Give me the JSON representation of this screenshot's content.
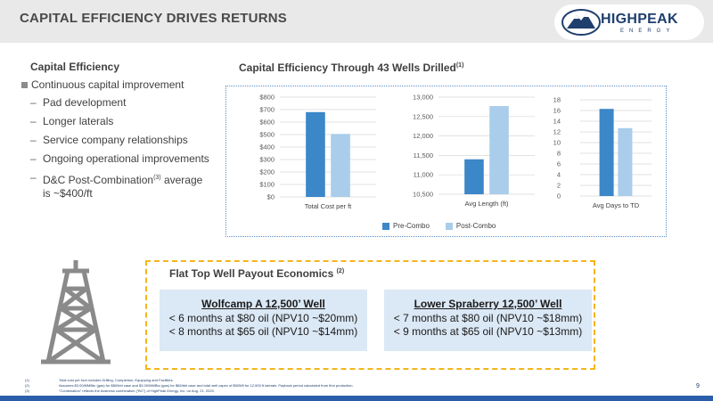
{
  "header": {
    "title": "CAPITAL EFFICIENCY DRIVES RETURNS",
    "logo_name": "HIGHPEAK",
    "logo_sub": "ENERGY"
  },
  "left": {
    "section_title": "Capital Efficiency",
    "main_bullet": "Continuous capital improvement",
    "items": [
      "Pad development",
      "Longer laterals",
      "Service company relationships",
      "Ongoing operational improvements"
    ],
    "dc_text_pre": "D&C Post-Combination",
    "dc_sup": "(3)",
    "dc_text_post": " average is ~$400/ft"
  },
  "chart_header": {
    "title": "Capital Efficiency Through 43 Wells Drilled",
    "title_sup": "(1)"
  },
  "colors": {
    "pre": "#3b87c8",
    "post": "#a9cdea",
    "gridline": "#d9d9d9",
    "accent": "#f4b51c",
    "navy": "#1f3f6e"
  },
  "chart_data": [
    {
      "type": "bar",
      "title": "",
      "xlabel": "",
      "ylabel": "",
      "categories": [
        "Total Cost per ft"
      ],
      "series": [
        {
          "name": "Pre-Combo",
          "values": [
            680
          ]
        },
        {
          "name": "Post-Combo",
          "values": [
            505
          ]
        }
      ],
      "ylim": [
        0,
        800
      ],
      "ticks": [
        0,
        100,
        200,
        300,
        400,
        500,
        600,
        700,
        800
      ],
      "tick_labels": [
        "$0",
        "$100",
        "$200",
        "$300",
        "$400",
        "$500",
        "$600",
        "$700",
        "$800"
      ],
      "grid": true
    },
    {
      "type": "bar",
      "title": "",
      "xlabel": "",
      "ylabel": "",
      "categories": [
        "Avg Length (ft)"
      ],
      "series": [
        {
          "name": "Pre-Combo",
          "values": [
            11400
          ]
        },
        {
          "name": "Post-Combo",
          "values": [
            12770
          ]
        }
      ],
      "ylim": [
        10500,
        13000
      ],
      "ticks": [
        10500,
        11000,
        11500,
        12000,
        12500,
        13000
      ],
      "tick_labels": [
        "10,500",
        "11,000",
        "11,500",
        "12,000",
        "12,500",
        "13,000"
      ],
      "grid": true
    },
    {
      "type": "bar",
      "title": "",
      "xlabel": "",
      "ylabel": "",
      "categories": [
        "Avg Days to TD"
      ],
      "series": [
        {
          "name": "Pre-Combo",
          "values": [
            16.3
          ]
        },
        {
          "name": "Post-Combo",
          "values": [
            12.7
          ]
        }
      ],
      "ylim": [
        0,
        18
      ],
      "ticks": [
        0,
        2,
        4,
        6,
        8,
        10,
        12,
        14,
        16,
        18
      ],
      "tick_labels": [
        "0",
        "2",
        "4",
        "6",
        "8",
        "10",
        "12",
        "14",
        "16",
        "18"
      ],
      "grid": true
    }
  ],
  "legend": {
    "pre": "Pre-Combo",
    "post": "Post-Combo"
  },
  "payout": {
    "title": "Flat Top Well Payout Economics",
    "title_sup": "(2)",
    "wells": [
      {
        "name": "Wolfcamp A 12,500’ Well",
        "line1": "< 6 months at $80 oil (NPV10 ~$20mm)",
        "line2": "< 8 months at $65 oil (NPV10 ~$14mm)"
      },
      {
        "name": "Lower Spraberry 12,500’ Well",
        "line1": "< 7 months at $80 oil (NPV10 ~$18mm)",
        "line2": "< 9 months at $65 oil (NPV10 ~$13mm)"
      }
    ]
  },
  "footnotes": [
    {
      "num": "(1)",
      "text": "Total cost per foot includes Drilling, Completion, Equipping and Facilities."
    },
    {
      "num": "(2)",
      "text": "Assumes $3.00/MMBtu (gas) for $80/bbl case and $3.00/MMBtu (gas) for $65/bbl case and total well capex of $505/ft for 12,500 ft laterals. Payback period calculated from first production."
    },
    {
      "num": "(3)",
      "text": "“Combination” reflects the business combination (“BC”) of HighPeak Energy, Inc. on Aug. 21, 2020."
    }
  ],
  "page_number": "9"
}
